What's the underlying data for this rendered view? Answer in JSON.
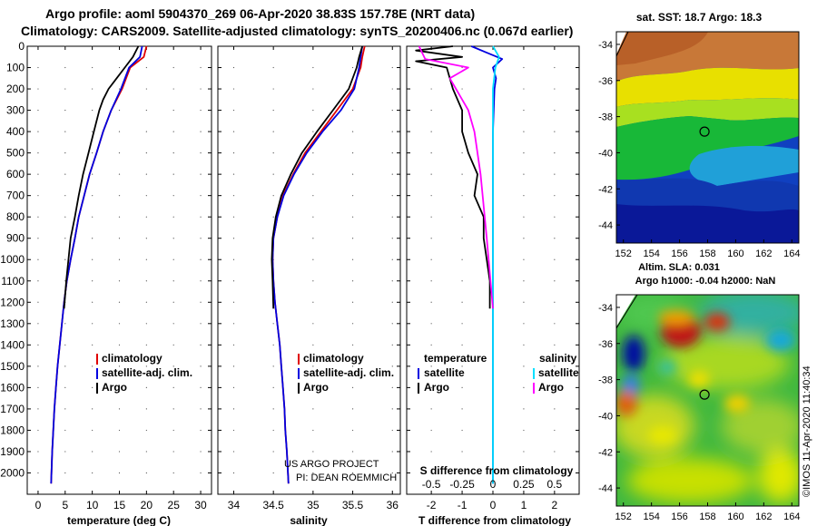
{
  "header": {
    "line1": "Argo profile: aoml 5904370_269 06-Apr-2020 38.83S 157.78E (NRT data)",
    "line2": "Climatology: CARS2009. Satellite-adjusted climatology: synTS_20200406.nc (0.067d earlier)"
  },
  "credit": {
    "line1": "US ARGO PROJECT",
    "line2": "PI: DEAN ROEMMICH"
  },
  "stamp": "©IMOS 11-Apr-2020 11:40:34",
  "colors": {
    "climatology": "#e00000",
    "satellite": "#0000e0",
    "argo": "#000000",
    "sat_salinity": "#00e0ff",
    "argo_salinity": "#ff00ff"
  },
  "chart_data": [
    {
      "type": "line",
      "title": "",
      "xlabel": "temperature (deg C)",
      "ylabel": "",
      "xlim": [
        -2,
        32
      ],
      "ylim": [
        2100,
        0
      ],
      "x_ticks": [
        0,
        5,
        10,
        15,
        20,
        25,
        30
      ],
      "y_ticks": [
        0,
        100,
        200,
        300,
        400,
        500,
        600,
        700,
        800,
        900,
        1000,
        1100,
        1200,
        1300,
        1400,
        1500,
        1600,
        1700,
        1800,
        1900,
        2000
      ],
      "legend": [
        "climatology",
        "satellite-adj. clim.",
        "Argo"
      ],
      "series": [
        {
          "name": "climatology",
          "x": [
            20.0,
            19.5,
            17.0,
            15.5,
            13.5,
            12.0,
            10.8,
            9.5,
            8.5,
            7.5,
            6.8,
            6.0,
            5.3,
            4.8,
            4.4,
            4.0,
            3.6,
            3.3,
            3.0,
            2.8,
            2.6,
            2.4
          ],
          "y": [
            0,
            50,
            100,
            200,
            300,
            400,
            500,
            600,
            700,
            800,
            900,
            1000,
            1100,
            1200,
            1300,
            1400,
            1500,
            1600,
            1700,
            1800,
            1900,
            2050
          ]
        },
        {
          "name": "satellite-adj. clim.",
          "x": [
            19.2,
            18.8,
            16.8,
            15.3,
            13.5,
            12.0,
            10.8,
            9.5,
            8.5,
            7.5,
            6.8,
            6.0,
            5.3,
            4.8,
            4.4,
            4.0,
            3.6,
            3.3,
            3.0,
            2.8,
            2.6,
            2.4
          ],
          "y": [
            0,
            50,
            100,
            200,
            300,
            400,
            500,
            600,
            700,
            800,
            900,
            1000,
            1100,
            1200,
            1300,
            1400,
            1500,
            1600,
            1700,
            1800,
            1900,
            2050
          ]
        },
        {
          "name": "Argo",
          "x": [
            18.5,
            17.5,
            16.0,
            14.5,
            13.0,
            12.0,
            11.3,
            10.3,
            9.3,
            8.3,
            7.5,
            6.8,
            6.0,
            5.2,
            4.8
          ],
          "y": [
            0,
            50,
            100,
            150,
            200,
            250,
            300,
            400,
            500,
            600,
            700,
            800,
            900,
            1100,
            1230
          ]
        }
      ]
    },
    {
      "type": "line",
      "title": "",
      "xlabel": "salinity",
      "ylabel": "",
      "xlim": [
        33.8,
        36.1
      ],
      "ylim": [
        2100,
        0
      ],
      "x_ticks": [
        34,
        34.5,
        35,
        35.5,
        36
      ],
      "legend": [
        "climatology",
        "satellite-adj. clim.",
        "Argo"
      ],
      "series": [
        {
          "name": "climatology",
          "x": [
            35.65,
            35.62,
            35.6,
            35.5,
            35.3,
            35.1,
            34.9,
            34.75,
            34.62,
            34.55,
            34.5,
            34.49,
            34.5,
            34.52,
            34.55,
            34.58,
            34.6,
            34.62,
            34.64,
            34.65,
            34.67,
            34.69
          ],
          "y": [
            0,
            50,
            100,
            200,
            300,
            400,
            500,
            600,
            700,
            800,
            900,
            1000,
            1100,
            1200,
            1300,
            1400,
            1500,
            1600,
            1700,
            1800,
            1900,
            2050
          ]
        },
        {
          "name": "satellite-adj. clim.",
          "x": [
            35.62,
            35.6,
            35.58,
            35.52,
            35.35,
            35.12,
            34.92,
            34.76,
            34.63,
            34.55,
            34.5,
            34.49,
            34.5,
            34.52,
            34.55,
            34.58,
            34.6,
            34.62,
            34.64,
            34.65,
            34.67,
            34.69
          ],
          "y": [
            0,
            50,
            100,
            200,
            300,
            400,
            500,
            600,
            700,
            800,
            900,
            1000,
            1100,
            1200,
            1300,
            1400,
            1500,
            1600,
            1700,
            1800,
            1900,
            2050
          ]
        },
        {
          "name": "Argo",
          "x": [
            35.62,
            35.58,
            35.55,
            35.45,
            35.25,
            35.05,
            34.86,
            34.72,
            34.6,
            34.53,
            34.49,
            34.48,
            34.49,
            34.5
          ],
          "y": [
            0,
            50,
            100,
            200,
            300,
            400,
            500,
            600,
            700,
            800,
            900,
            1000,
            1100,
            1230
          ]
        }
      ]
    },
    {
      "type": "line",
      "title": "",
      "xlabel": "T difference from climatology",
      "ylabel": "",
      "xlim": [
        -2.8,
        2.8
      ],
      "ylim": [
        2100,
        0
      ],
      "x_ticks": [
        -2,
        -1,
        0,
        1,
        2
      ],
      "secondary_axis": {
        "label": "S difference from climatology",
        "ticks": [
          -0.5,
          -0.25,
          0,
          0.25,
          0.5
        ]
      },
      "legend": [
        "temperature",
        "satellite",
        "Argo",
        "salinity",
        "satellite",
        "Argo"
      ],
      "series": [
        {
          "name": "temperature satellite",
          "x": [
            -0.7,
            -0.2,
            0.3,
            0.0,
            0.1,
            0.05,
            0.0,
            0.0,
            0.0
          ],
          "y": [
            0,
            30,
            60,
            100,
            150,
            200,
            400,
            1000,
            2050
          ]
        },
        {
          "name": "temperature Argo",
          "x": [
            -1.3,
            -2.5,
            -1.0,
            -2.5,
            -1.5,
            -1.3,
            -1.0,
            -1.0,
            -0.8,
            -0.5,
            -0.6,
            -0.3,
            -0.3,
            -0.1,
            -0.1
          ],
          "y": [
            0,
            20,
            50,
            70,
            100,
            200,
            300,
            400,
            500,
            600,
            700,
            800,
            900,
            1100,
            1230
          ]
        },
        {
          "name": "salinity satellite",
          "x": [
            0.0,
            0.05,
            0.02,
            0.0,
            0.0,
            0.0,
            0.0,
            0.0
          ],
          "y": [
            0,
            50,
            100,
            200,
            400,
            800,
            1500,
            2050
          ]
        },
        {
          "name": "salinity Argo",
          "x": [
            -0.6,
            -0.55,
            -0.2,
            -0.35,
            -0.3,
            -0.2,
            -0.15,
            -0.1,
            -0.05,
            0.0
          ],
          "y": [
            0,
            60,
            100,
            150,
            200,
            300,
            400,
            600,
            900,
            1230
          ]
        }
      ]
    },
    {
      "type": "heatmap",
      "title": "sat. SST: 18.7 Argo: 18.3",
      "xlabel": "",
      "ylabel": "",
      "xlim": [
        151.5,
        164.5
      ],
      "ylim": [
        -45,
        -33.3
      ],
      "x_ticks": [
        152,
        154,
        156,
        158,
        160,
        162,
        164
      ],
      "y_ticks": [
        -34,
        -36,
        -38,
        -40,
        -42,
        -44
      ],
      "marker": {
        "lon": 157.78,
        "lat": -38.83
      }
    },
    {
      "type": "heatmap",
      "title": "Altim. SLA: 0.031",
      "subtitle": "Argo h1000: -0.04 h2000: NaN",
      "xlabel": "",
      "ylabel": "",
      "xlim": [
        151.5,
        164.5
      ],
      "ylim": [
        -45,
        -33.3
      ],
      "x_ticks": [
        152,
        154,
        156,
        158,
        160,
        162,
        164
      ],
      "y_ticks": [
        -34,
        -36,
        -38,
        -40,
        -42,
        -44
      ],
      "marker": {
        "lon": 157.78,
        "lat": -38.83
      }
    }
  ]
}
